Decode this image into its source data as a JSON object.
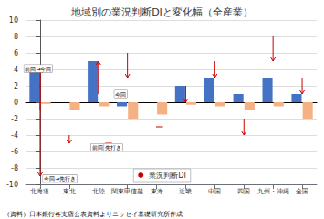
{
  "chart_data": {
    "type": "bar",
    "title": "地域別の業況判断DIと変化幅（全産業）",
    "categories": [
      "北海道",
      "東北",
      "北陸",
      "関東甲信越",
      "東海",
      "近畿",
      "中国",
      "四国",
      "九州・沖縄",
      "全国"
    ],
    "series": [
      {
        "color": "#4472C4",
        "values": [
          4,
          0,
          5,
          -0.5,
          0,
          2,
          3,
          1,
          3,
          1
        ]
      },
      {
        "color": "#F4B183",
        "values": [
          -0.2,
          -1,
          -0.5,
          -2,
          -1.5,
          -0.3,
          -0.5,
          -1.0,
          -0.5,
          -2
        ]
      },
      {
        "name": "業況判断DI",
        "type": "arrow",
        "color": "#CC0000",
        "marker": "o",
        "x": [
          0,
          1,
          2,
          2.35,
          3,
          4.1,
          5,
          6,
          7,
          8,
          9
        ],
        "values": [
          [
            -1,
            4,
            -9
          ],
          [
            -4,
            -5
          ],
          [
            1,
            5
          ],
          [
            -5,
            -5
          ],
          [
            6,
            3
          ],
          [
            -3,
            -3
          ],
          [
            2,
            0
          ],
          [
            5,
            3
          ],
          [
            -2,
            -4
          ],
          [
            8,
            5
          ],
          [
            3,
            1
          ]
        ]
      }
    ],
    "annotations": [
      {
        "text": "前回→今回",
        "x": -0.55,
        "y": 4.1
      },
      {
        "text": "今回→先行き",
        "x": 0.1,
        "y": -9.3
      },
      {
        "text": "前回",
        "x": 1.75,
        "y": -5.5
      },
      {
        "text": "先打き",
        "x": 2.2,
        "y": -5.5
      },
      {
        "text": "今回",
        "x": 2.55,
        "y": 1.0
      }
    ],
    "source": "（資料）日本銀行各支店公表資料よりニッセイ基礎研究所作成",
    "ylim": [
      -10,
      10
    ],
    "yticks": [
      -10,
      -8,
      -6,
      -4,
      -2,
      0,
      2,
      4,
      6,
      8,
      10
    ],
    "grid": true,
    "legend": "lower center"
  }
}
